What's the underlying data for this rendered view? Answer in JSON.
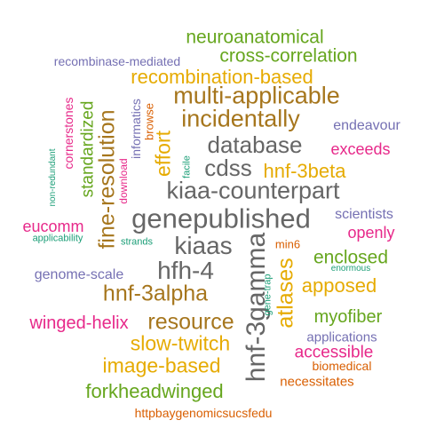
{
  "palette": {
    "green": "#66a61e",
    "purple": "#7570b3",
    "gold": "#e6ab02",
    "brown": "#a6761d",
    "gray": "#666666",
    "magenta": "#e7298a",
    "orange": "#d95f02",
    "teal": "#1b9e77"
  },
  "words": [
    {
      "text": "neuroanatomical",
      "color": "green"
    },
    {
      "text": "cross-correlation",
      "color": "green"
    },
    {
      "text": "recombinase-mediated",
      "color": "purple"
    },
    {
      "text": "recombination-based",
      "color": "gold"
    },
    {
      "text": "multi-applicable",
      "color": "brown"
    },
    {
      "text": "incidentally",
      "color": "brown"
    },
    {
      "text": "endeavour",
      "color": "purple"
    },
    {
      "text": "database",
      "color": "gray"
    },
    {
      "text": "exceeds",
      "color": "magenta"
    },
    {
      "text": "cdss",
      "color": "gray"
    },
    {
      "text": "hnf-3beta",
      "color": "gold"
    },
    {
      "text": "kiaa-counterpart",
      "color": "gray"
    },
    {
      "text": "genepublished",
      "color": "gray"
    },
    {
      "text": "scientists",
      "color": "purple"
    },
    {
      "text": "eucomm",
      "color": "magenta"
    },
    {
      "text": "openly",
      "color": "magenta"
    },
    {
      "text": "applicability",
      "color": "teal"
    },
    {
      "text": "strands",
      "color": "teal"
    },
    {
      "text": "kiaas",
      "color": "gray"
    },
    {
      "text": "min6",
      "color": "orange"
    },
    {
      "text": "enclosed",
      "color": "green"
    },
    {
      "text": "enormous",
      "color": "teal"
    },
    {
      "text": "genome-scale",
      "color": "purple"
    },
    {
      "text": "hfh-4",
      "color": "gray"
    },
    {
      "text": "apposed",
      "color": "gold"
    },
    {
      "text": "hnf-3alpha",
      "color": "brown"
    },
    {
      "text": "myofiber",
      "color": "green"
    },
    {
      "text": "winged-helix",
      "color": "magenta"
    },
    {
      "text": "resource",
      "color": "brown"
    },
    {
      "text": "accessible",
      "color": "magenta"
    },
    {
      "text": "applications",
      "color": "purple"
    },
    {
      "text": "slow-twitch",
      "color": "gold"
    },
    {
      "text": "biomedical",
      "color": "orange"
    },
    {
      "text": "image-based",
      "color": "gold"
    },
    {
      "text": "necessitates",
      "color": "orange"
    },
    {
      "text": "forkheadwinged",
      "color": "green"
    },
    {
      "text": "httpbaygenomicsucsfedu",
      "color": "orange"
    },
    {
      "text": "cornerstones",
      "color": "magenta"
    },
    {
      "text": "standardized",
      "color": "green"
    },
    {
      "text": "non-redundant",
      "color": "teal"
    },
    {
      "text": "fine-resolution",
      "color": "brown"
    },
    {
      "text": "informatics",
      "color": "purple"
    },
    {
      "text": "download",
      "color": "magenta"
    },
    {
      "text": "browse",
      "color": "orange"
    },
    {
      "text": "effort",
      "color": "gold"
    },
    {
      "text": "facile",
      "color": "teal"
    },
    {
      "text": "hnf-3gamma",
      "color": "gray"
    },
    {
      "text": "gene-trap",
      "color": "teal"
    },
    {
      "text": "atlases",
      "color": "gold"
    }
  ]
}
